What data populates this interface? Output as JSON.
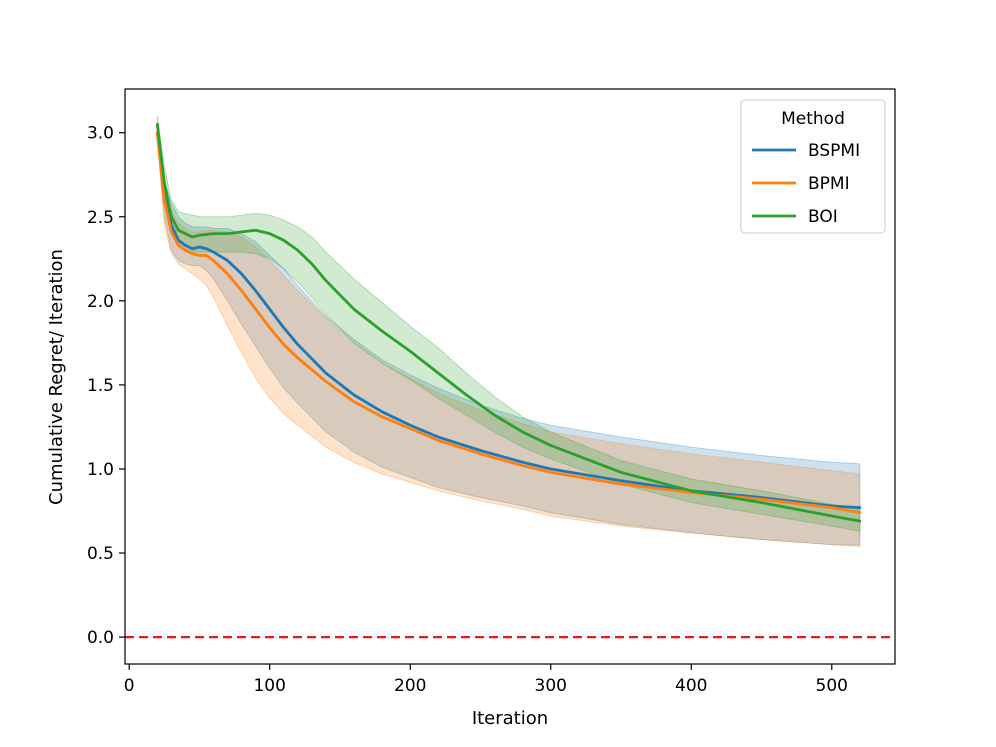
{
  "chart_data": {
    "type": "line",
    "title": "",
    "xlabel": "Iteration",
    "ylabel": "Cumulative Regret/ Iteration",
    "xlim": [
      -3,
      545
    ],
    "ylim": [
      -0.16,
      3.26
    ],
    "xticks": [
      0,
      100,
      200,
      300,
      400,
      500
    ],
    "xtick_labels": [
      "0",
      "100",
      "200",
      "300",
      "400",
      "500"
    ],
    "yticks": [
      0.0,
      0.5,
      1.0,
      1.5,
      2.0,
      2.5,
      3.0
    ],
    "ytick_labels": [
      "0.0",
      "0.5",
      "1.0",
      "1.5",
      "2.0",
      "2.5",
      "3.0"
    ],
    "grid": false,
    "legend": {
      "title": "Method",
      "position": "top-right"
    },
    "reference_line": {
      "y": 0.0,
      "style": "dashed",
      "color": "#e41a1c"
    },
    "series": [
      {
        "name": "BSPMI",
        "color": "#1f77b4",
        "x": [
          20,
          25,
          30,
          35,
          40,
          45,
          50,
          55,
          60,
          70,
          80,
          90,
          100,
          110,
          120,
          140,
          160,
          180,
          200,
          220,
          250,
          280,
          300,
          350,
          400,
          450,
          500,
          520
        ],
        "y": [
          3.0,
          2.62,
          2.45,
          2.36,
          2.33,
          2.31,
          2.32,
          2.31,
          2.29,
          2.24,
          2.16,
          2.06,
          1.95,
          1.84,
          1.74,
          1.57,
          1.44,
          1.34,
          1.26,
          1.19,
          1.11,
          1.04,
          1.0,
          0.93,
          0.87,
          0.83,
          0.78,
          0.77
        ],
        "lower": [
          2.95,
          2.5,
          2.3,
          2.24,
          2.22,
          2.21,
          2.21,
          2.18,
          2.13,
          2.0,
          1.86,
          1.73,
          1.6,
          1.48,
          1.39,
          1.22,
          1.1,
          1.01,
          0.95,
          0.89,
          0.83,
          0.78,
          0.74,
          0.67,
          0.62,
          0.58,
          0.55,
          0.54
        ],
        "upper": [
          3.05,
          2.72,
          2.58,
          2.5,
          2.46,
          2.44,
          2.44,
          2.44,
          2.43,
          2.43,
          2.4,
          2.35,
          2.27,
          2.19,
          2.09,
          1.91,
          1.77,
          1.65,
          1.56,
          1.48,
          1.38,
          1.3,
          1.26,
          1.19,
          1.13,
          1.08,
          1.04,
          1.03
        ]
      },
      {
        "name": "BPMI",
        "color": "#ff7f0e",
        "x": [
          20,
          25,
          30,
          35,
          40,
          45,
          50,
          55,
          60,
          70,
          80,
          90,
          100,
          110,
          120,
          140,
          160,
          180,
          200,
          220,
          250,
          280,
          300,
          350,
          400,
          450,
          500,
          520
        ],
        "y": [
          3.0,
          2.6,
          2.41,
          2.33,
          2.3,
          2.28,
          2.27,
          2.27,
          2.24,
          2.16,
          2.06,
          1.95,
          1.84,
          1.74,
          1.66,
          1.52,
          1.4,
          1.31,
          1.24,
          1.17,
          1.09,
          1.02,
          0.98,
          0.91,
          0.86,
          0.82,
          0.77,
          0.74
        ],
        "lower": [
          2.95,
          2.45,
          2.28,
          2.22,
          2.19,
          2.16,
          2.13,
          2.09,
          2.02,
          1.85,
          1.69,
          1.54,
          1.42,
          1.33,
          1.26,
          1.13,
          1.04,
          0.97,
          0.92,
          0.87,
          0.81,
          0.76,
          0.72,
          0.66,
          0.62,
          0.58,
          0.55,
          0.55
        ],
        "upper": [
          3.05,
          2.7,
          2.54,
          2.46,
          2.43,
          2.41,
          2.41,
          2.42,
          2.42,
          2.41,
          2.38,
          2.32,
          2.24,
          2.15,
          2.06,
          1.9,
          1.75,
          1.63,
          1.54,
          1.45,
          1.35,
          1.27,
          1.22,
          1.15,
          1.09,
          1.04,
          0.99,
          0.97
        ]
      },
      {
        "name": "BOI",
        "color": "#2ca02c",
        "x": [
          20,
          25,
          30,
          35,
          40,
          45,
          50,
          60,
          70,
          80,
          90,
          100,
          110,
          120,
          130,
          140,
          160,
          180,
          200,
          220,
          240,
          260,
          280,
          300,
          350,
          400,
          450,
          500,
          520
        ],
        "y": [
          3.05,
          2.7,
          2.5,
          2.42,
          2.4,
          2.38,
          2.39,
          2.4,
          2.4,
          2.41,
          2.42,
          2.4,
          2.36,
          2.3,
          2.22,
          2.12,
          1.95,
          1.82,
          1.7,
          1.57,
          1.44,
          1.32,
          1.22,
          1.14,
          0.98,
          0.87,
          0.8,
          0.72,
          0.69
        ],
        "lower": [
          3.0,
          2.6,
          2.4,
          2.33,
          2.3,
          2.29,
          2.29,
          2.29,
          2.29,
          2.29,
          2.28,
          2.25,
          2.19,
          2.11,
          2.02,
          1.92,
          1.75,
          1.63,
          1.53,
          1.42,
          1.32,
          1.22,
          1.13,
          1.06,
          0.91,
          0.8,
          0.73,
          0.66,
          0.63
        ],
        "upper": [
          3.1,
          2.8,
          2.6,
          2.53,
          2.52,
          2.51,
          2.5,
          2.5,
          2.5,
          2.51,
          2.52,
          2.51,
          2.48,
          2.44,
          2.38,
          2.29,
          2.13,
          1.99,
          1.85,
          1.72,
          1.57,
          1.43,
          1.31,
          1.22,
          1.05,
          0.94,
          0.87,
          0.79,
          0.76
        ]
      }
    ]
  }
}
